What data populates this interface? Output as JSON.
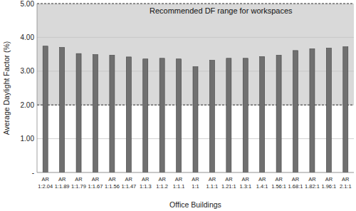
{
  "chart_data": {
    "type": "bar",
    "categories": [
      "AR 1:2.04",
      "AR 1:1.89",
      "AR 1:1.79",
      "AR 1:1.67",
      "AR 1:1.56",
      "AR 1:1.47",
      "AR 1:1.3",
      "AR 1:1.2",
      "AR 1:1.1",
      "AR 1:1",
      "AR 1.1:1",
      "AR 1.21:1",
      "AR 1.3:1",
      "AR 1.4:1",
      "AR 1.56:1",
      "AR 1.68:1",
      "AR 1.82:1",
      "AR 1.96:1",
      "AR 2.1:1"
    ],
    "values": [
      3.74,
      3.7,
      3.52,
      3.49,
      3.47,
      3.42,
      3.36,
      3.38,
      3.36,
      3.13,
      3.32,
      3.38,
      3.38,
      3.43,
      3.47,
      3.61,
      3.66,
      3.68,
      3.72
    ],
    "color": "#707070",
    "x_label": "Office Buildings",
    "y_label": "Average Daylight Factor (%)",
    "ylim": [
      0,
      5
    ],
    "yticks": [
      {
        "value": 0,
        "label": "-"
      },
      {
        "value": 1,
        "label": "1.00"
      },
      {
        "value": 2,
        "label": "2.00"
      },
      {
        "value": 3,
        "label": "3.00"
      },
      {
        "value": 4,
        "label": "4.00"
      },
      {
        "value": 5,
        "label": "5.00"
      }
    ],
    "grid": true,
    "annotations": [
      {
        "text": "Recommended DF range for workspaces",
        "y_range": [
          2,
          5
        ]
      }
    ]
  }
}
